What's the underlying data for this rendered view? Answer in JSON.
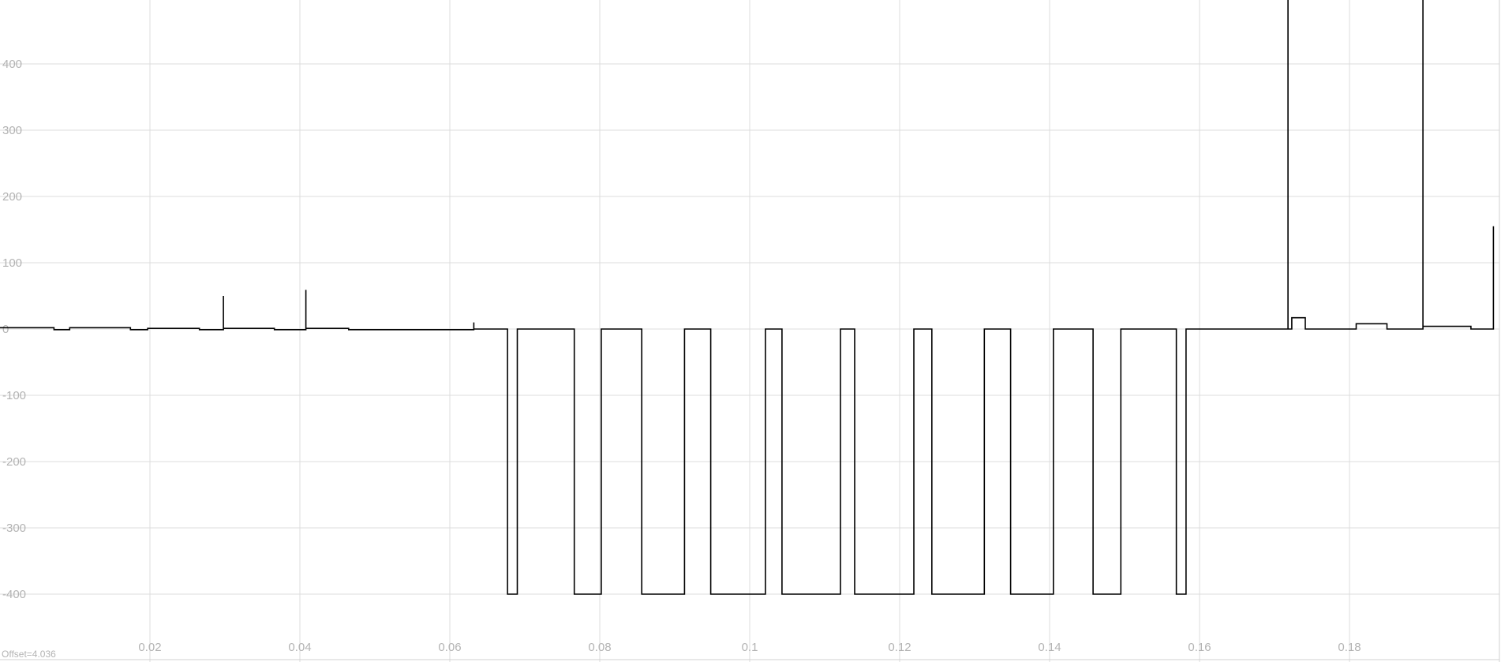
{
  "chart_data": {
    "type": "line",
    "title": "",
    "xlabel": "",
    "ylabel": "",
    "offset_text": "Offset=4.036",
    "xlim": [
      0.0,
      0.2
    ],
    "ylim": [
      -500,
      500
    ],
    "x_ticks": [
      0.02,
      0.04,
      0.06,
      0.08,
      0.1,
      0.12,
      0.14,
      0.16,
      0.18
    ],
    "x_tick_labels": [
      "0.02",
      "0.04",
      "0.06",
      "0.08",
      "0.1",
      "0.12",
      "0.14",
      "0.16",
      "0.18"
    ],
    "y_ticks": [
      400,
      300,
      200,
      100,
      0,
      -100,
      -200,
      -300,
      -400
    ],
    "y_tick_labels": [
      "400",
      "300",
      "200",
      "100",
      "0",
      "-100",
      "-200",
      "-300",
      "-400"
    ],
    "grid": true,
    "series": [
      {
        "color": "#000000",
        "points": [
          [
            0.0,
            2
          ],
          [
            0.0072,
            2
          ],
          [
            0.0072,
            -1
          ],
          [
            0.0093,
            -1
          ],
          [
            0.0093,
            2
          ],
          [
            0.0174,
            2
          ],
          [
            0.0174,
            -1
          ],
          [
            0.0197,
            -1
          ],
          [
            0.0197,
            1
          ],
          [
            0.0266,
            1
          ],
          [
            0.0266,
            -1
          ],
          [
            0.0298,
            -1
          ],
          [
            0.0298,
            50
          ],
          [
            0.0298,
            1
          ],
          [
            0.0366,
            1
          ],
          [
            0.0366,
            -1
          ],
          [
            0.0408,
            -1
          ],
          [
            0.0408,
            59
          ],
          [
            0.0408,
            1
          ],
          [
            0.0465,
            1
          ],
          [
            0.0465,
            -1
          ],
          [
            0.0632,
            -1
          ],
          [
            0.0632,
            10
          ],
          [
            0.0632,
            0
          ],
          [
            0.0677,
            0
          ],
          [
            0.0677,
            -400
          ],
          [
            0.069,
            -400
          ],
          [
            0.069,
            0
          ],
          [
            0.0766,
            0
          ],
          [
            0.0766,
            -400
          ],
          [
            0.0802,
            -400
          ],
          [
            0.0802,
            0
          ],
          [
            0.0856,
            0
          ],
          [
            0.0856,
            -400
          ],
          [
            0.0913,
            -400
          ],
          [
            0.0913,
            0
          ],
          [
            0.0948,
            0
          ],
          [
            0.0948,
            -400
          ],
          [
            0.1021,
            -400
          ],
          [
            0.1021,
            0
          ],
          [
            0.1043,
            0
          ],
          [
            0.1043,
            -400
          ],
          [
            0.1121,
            -400
          ],
          [
            0.1121,
            0
          ],
          [
            0.114,
            0
          ],
          [
            0.114,
            -400
          ],
          [
            0.1219,
            -400
          ],
          [
            0.1219,
            0
          ],
          [
            0.1243,
            0
          ],
          [
            0.1243,
            -400
          ],
          [
            0.1313,
            -400
          ],
          [
            0.1313,
            0
          ],
          [
            0.1348,
            0
          ],
          [
            0.1348,
            -400
          ],
          [
            0.1405,
            -400
          ],
          [
            0.1405,
            0
          ],
          [
            0.1458,
            0
          ],
          [
            0.1458,
            -400
          ],
          [
            0.1495,
            -400
          ],
          [
            0.1495,
            0
          ],
          [
            0.1569,
            0
          ],
          [
            0.1569,
            -400
          ],
          [
            0.1582,
            -400
          ],
          [
            0.1582,
            0
          ],
          [
            0.1718,
            0
          ],
          [
            0.1718,
            500
          ],
          [
            0.1718,
            0
          ],
          [
            0.1723,
            0
          ],
          [
            0.1723,
            17
          ],
          [
            0.1741,
            17
          ],
          [
            0.1741,
            0
          ],
          [
            0.1809,
            0
          ],
          [
            0.1809,
            8
          ],
          [
            0.185,
            8
          ],
          [
            0.185,
            0
          ],
          [
            0.1898,
            0
          ],
          [
            0.1898,
            500
          ],
          [
            0.1898,
            4
          ],
          [
            0.1962,
            4
          ],
          [
            0.1962,
            0
          ],
          [
            0.1992,
            0
          ],
          [
            0.1992,
            155
          ]
        ]
      }
    ]
  }
}
